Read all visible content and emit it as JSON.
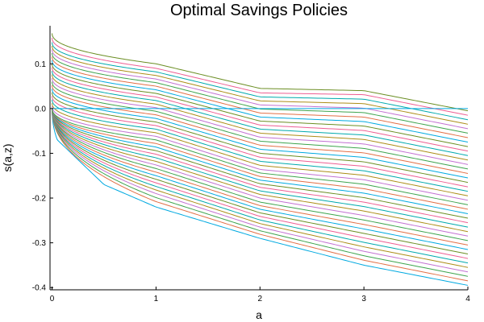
{
  "chart_data": {
    "type": "line",
    "title": "Optimal Savings Policies",
    "xlabel": "a",
    "ylabel": "s(a,z)",
    "xlim": [
      -0.02,
      4.0
    ],
    "ylim": [
      -0.405,
      0.185
    ],
    "xticks": [
      0,
      1,
      2,
      3,
      4
    ],
    "xtick_labels": [
      "0",
      "1",
      "2",
      "3",
      "4"
    ],
    "yticks": [
      0.1,
      0.0,
      -0.1,
      -0.2,
      -0.3,
      -0.4
    ],
    "ytick_labels": [
      "0.1",
      "0.0",
      "-0.1",
      "-0.2",
      "-0.3",
      "-0.4"
    ],
    "grid": false,
    "legend": "none",
    "palette": [
      "#00a9e0",
      "#e26f46",
      "#3da44d",
      "#c271d2",
      "#ac8d18",
      "#00a9ad",
      "#ed5e93",
      "#6b8e23"
    ],
    "series_shape": "s(a) = s(4) + (s(0) - s(4)) * (1 - (a/4)^p) with s(a) clipped at 0 for the top series",
    "series": [
      {
        "values_at_a": {
          "0": 0.0,
          "0.05": -0.07,
          "0.5": -0.17,
          "1": -0.22,
          "2": -0.29,
          "3": -0.35,
          "4": -0.395
        }
      },
      {
        "values_at_a": {
          "0": 0.0,
          "1": -0.208,
          "2": -0.281,
          "3": -0.339,
          "4": -0.385
        }
      },
      {
        "values_at_a": {
          "0": 0.0,
          "1": -0.199,
          "2": -0.273,
          "3": -0.329,
          "4": -0.375
        }
      },
      {
        "values_at_a": {
          "0": 0.0,
          "1": -0.19,
          "2": -0.265,
          "3": -0.319,
          "4": -0.365
        }
      },
      {
        "values_at_a": {
          "0": 0.0,
          "1": -0.182,
          "2": -0.257,
          "3": -0.309,
          "4": -0.355
        }
      },
      {
        "values_at_a": {
          "0": 0.0,
          "1": -0.174,
          "2": -0.249,
          "3": -0.299,
          "4": -0.345
        }
      },
      {
        "values_at_a": {
          "0": 0.0,
          "1": -0.166,
          "2": -0.241,
          "3": -0.289,
          "4": -0.335
        }
      },
      {
        "values_at_a": {
          "0": 0.0,
          "1": -0.158,
          "2": -0.233,
          "3": -0.279,
          "4": -0.325
        }
      },
      {
        "values_at_a": {
          "0": 0.0,
          "1": -0.15,
          "2": -0.225,
          "3": -0.269,
          "4": -0.315
        }
      },
      {
        "values_at_a": {
          "0": 0.0,
          "1": -0.142,
          "2": -0.217,
          "3": -0.259,
          "4": -0.305
        }
      },
      {
        "values_at_a": {
          "0": 0.0,
          "1": -0.134,
          "2": -0.209,
          "3": -0.249,
          "4": -0.295
        }
      },
      {
        "values_at_a": {
          "0": 0.0,
          "1": -0.126,
          "2": -0.2,
          "3": -0.239,
          "4": -0.285
        }
      },
      {
        "values_at_a": {
          "0": 0.0,
          "1": -0.118,
          "2": -0.192,
          "3": -0.229,
          "4": -0.275
        }
      },
      {
        "values_at_a": {
          "0": 0.0,
          "1": -0.11,
          "2": -0.184,
          "3": -0.219,
          "4": -0.265
        }
      },
      {
        "values_at_a": {
          "0": 0.0,
          "1": -0.102,
          "2": -0.176,
          "3": -0.209,
          "4": -0.255
        }
      },
      {
        "values_at_a": {
          "0": 0.0,
          "1": -0.094,
          "2": -0.168,
          "3": -0.199,
          "4": -0.245
        }
      },
      {
        "values_at_a": {
          "0": 0.0,
          "1": -0.086,
          "2": -0.16,
          "3": -0.189,
          "4": -0.235
        }
      },
      {
        "values_at_a": {
          "0": 0.0,
          "1": -0.078,
          "2": -0.152,
          "3": -0.179,
          "4": -0.225
        }
      },
      {
        "values_at_a": {
          "0": 0.0,
          "1": -0.07,
          "2": -0.144,
          "3": -0.169,
          "4": -0.215
        }
      },
      {
        "values_at_a": {
          "0": 0.005,
          "1": -0.062,
          "2": -0.136,
          "3": -0.159,
          "4": -0.205
        }
      },
      {
        "values_at_a": {
          "0": 0.012,
          "1": -0.054,
          "2": -0.127,
          "3": -0.149,
          "4": -0.195
        }
      },
      {
        "values_at_a": {
          "0": 0.02,
          "1": -0.046,
          "2": -0.118,
          "3": -0.139,
          "4": -0.185
        }
      },
      {
        "values_at_a": {
          "0": 0.028,
          "1": -0.038,
          "2": -0.109,
          "3": -0.129,
          "4": -0.175
        }
      },
      {
        "values_at_a": {
          "0": 0.036,
          "1": -0.03,
          "2": -0.1,
          "3": -0.119,
          "4": -0.165
        }
      },
      {
        "values_at_a": {
          "0": 0.044,
          "1": -0.022,
          "2": -0.091,
          "3": -0.109,
          "4": -0.155
        }
      },
      {
        "values_at_a": {
          "0": 0.052,
          "1": -0.014,
          "2": -0.082,
          "3": -0.099,
          "4": -0.145
        }
      },
      {
        "values_at_a": {
          "0": 0.06,
          "1": -0.006,
          "2": -0.073,
          "3": -0.089,
          "4": -0.135
        }
      },
      {
        "values_at_a": {
          "0": 0.068,
          "1": 0.002,
          "2": -0.064,
          "3": -0.079,
          "4": -0.125
        }
      },
      {
        "values_at_a": {
          "0": 0.076,
          "1": 0.01,
          "2": -0.055,
          "3": -0.069,
          "4": -0.115
        }
      },
      {
        "values_at_a": {
          "0": 0.084,
          "1": 0.018,
          "2": -0.046,
          "3": -0.059,
          "4": -0.105
        }
      },
      {
        "values_at_a": {
          "0": 0.092,
          "1": 0.026,
          "2": -0.037,
          "3": -0.049,
          "4": -0.095
        }
      },
      {
        "values_at_a": {
          "0": 0.1,
          "1": 0.034,
          "2": -0.028,
          "3": -0.039,
          "4": -0.085
        }
      },
      {
        "values_at_a": {
          "0": 0.108,
          "1": 0.042,
          "2": -0.019,
          "3": -0.029,
          "4": -0.075
        }
      },
      {
        "values_at_a": {
          "0": 0.116,
          "1": 0.05,
          "2": -0.01,
          "3": -0.019,
          "4": -0.065
        }
      },
      {
        "values_at_a": {
          "0": 0.124,
          "1": 0.058,
          "2": -0.001,
          "3": -0.009,
          "4": -0.055
        }
      },
      {
        "values_at_a": {
          "0": 0.132,
          "1": 0.066,
          "2": 0.008,
          "3": 0.001,
          "4": -0.045
        }
      },
      {
        "values_at_a": {
          "0": 0.14,
          "1": 0.074,
          "2": 0.017,
          "3": 0.011,
          "4": -0.035
        }
      },
      {
        "values_at_a": {
          "0": 0.148,
          "1": 0.082,
          "2": 0.026,
          "3": 0.021,
          "4": -0.025
        }
      },
      {
        "values_at_a": {
          "0": 0.158,
          "1": 0.09,
          "2": 0.035,
          "3": 0.031,
          "4": -0.015
        }
      },
      {
        "values_at_a": {
          "0": 0.168,
          "1": 0.1,
          "2": 0.045,
          "3": 0.04,
          "4": -0.005
        }
      },
      {
        "values_at_a": {
          "0": 0.0,
          "1": 0.0,
          "2": 0.0,
          "3": 0.0,
          "4": 0.0
        }
      }
    ]
  }
}
